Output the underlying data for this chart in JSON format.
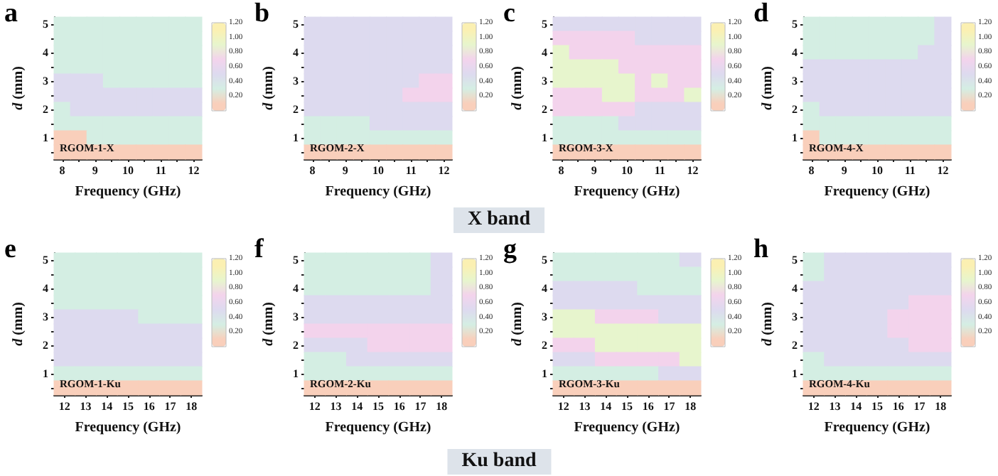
{
  "chart_data": [
    {
      "type": "heatmap",
      "title": "a",
      "xlabel": "Frequency (GHz)",
      "ylabel": "d (mm)",
      "annotations": [
        "RGOM-1-X",
        "X band"
      ],
      "categories": [
        "8",
        null,
        "9",
        null,
        "10",
        null,
        "11",
        null,
        "12"
      ],
      "y_categories": [
        "5",
        null,
        "4",
        null,
        "3",
        null,
        "2",
        null,
        "1",
        null
      ],
      "clim": [
        0,
        1.2
      ],
      "cticks": [
        {
          "value": 0.2,
          "label": "0.20"
        },
        {
          "value": 0.4,
          "label": "0.40"
        },
        {
          "value": 0.6,
          "label": "0.60"
        },
        {
          "value": 0.8,
          "label": "0.80"
        },
        {
          "value": 1.0,
          "label": "1.00"
        },
        {
          "value": 1.2,
          "label": "1.20"
        }
      ],
      "colors": [
        "#f9cfbb",
        "#d4eee3",
        "#dddaef",
        "#f3d3ec",
        "#e7f5cd",
        "#fbf0b2"
      ],
      "cells": [
        [
          0.3,
          0.3,
          0.3,
          0.3,
          0.3,
          0.3,
          0.3,
          0.3,
          0.3
        ],
        [
          0.3,
          0.3,
          0.3,
          0.3,
          0.3,
          0.3,
          0.3,
          0.3,
          0.3
        ],
        [
          0.3,
          0.3,
          0.3,
          0.3,
          0.3,
          0.3,
          0.3,
          0.3,
          0.3
        ],
        [
          0.3,
          0.3,
          0.3,
          0.3,
          0.3,
          0.3,
          0.3,
          0.3,
          0.3
        ],
        [
          0.5,
          0.5,
          0.5,
          0.3,
          0.3,
          0.3,
          0.3,
          0.3,
          0.3
        ],
        [
          0.5,
          0.5,
          0.5,
          0.5,
          0.5,
          0.5,
          0.5,
          0.5,
          0.5
        ],
        [
          0.3,
          0.5,
          0.5,
          0.5,
          0.5,
          0.5,
          0.5,
          0.5,
          0.5
        ],
        [
          0.3,
          0.3,
          0.3,
          0.3,
          0.3,
          0.3,
          0.3,
          0.3,
          0.3
        ],
        [
          0.1,
          0.1,
          0.3,
          0.3,
          0.3,
          0.3,
          0.3,
          0.3,
          0.3
        ],
        [
          0.1,
          0.1,
          0.1,
          0.1,
          0.1,
          0.1,
          0.1,
          0.1,
          0.1
        ]
      ]
    },
    {
      "type": "heatmap",
      "title": "b",
      "xlabel": "Frequency (GHz)",
      "ylabel": "d (mm)",
      "annotations": [
        "RGOM-2-X"
      ],
      "categories": [
        "8",
        null,
        "9",
        null,
        "10",
        null,
        "11",
        null,
        "12"
      ],
      "y_categories": [
        "5",
        null,
        "4",
        null,
        "3",
        null,
        "2",
        null,
        "1",
        null
      ],
      "clim": [
        0,
        1.2
      ],
      "cticks": [
        {
          "value": 0.2,
          "label": "0.20"
        },
        {
          "value": 0.4,
          "label": "0.40"
        },
        {
          "value": 0.6,
          "label": "0.60"
        },
        {
          "value": 0.8,
          "label": "0.80"
        },
        {
          "value": 1.0,
          "label": "1.00"
        },
        {
          "value": 1.2,
          "label": "1.20"
        }
      ],
      "colors": [
        "#f9cfbb",
        "#d4eee3",
        "#dddaef",
        "#f3d3ec",
        "#e7f5cd",
        "#fbf0b2"
      ],
      "cells": [
        [
          0.5,
          0.5,
          0.5,
          0.5,
          0.5,
          0.5,
          0.5,
          0.5,
          0.5
        ],
        [
          0.5,
          0.5,
          0.5,
          0.5,
          0.5,
          0.5,
          0.5,
          0.5,
          0.5
        ],
        [
          0.5,
          0.5,
          0.5,
          0.5,
          0.5,
          0.5,
          0.5,
          0.5,
          0.5
        ],
        [
          0.5,
          0.5,
          0.5,
          0.5,
          0.5,
          0.5,
          0.5,
          0.5,
          0.5
        ],
        [
          0.5,
          0.5,
          0.5,
          0.5,
          0.5,
          0.5,
          0.5,
          0.7,
          0.7
        ],
        [
          0.5,
          0.5,
          0.5,
          0.5,
          0.5,
          0.5,
          0.7,
          0.7,
          0.7
        ],
        [
          0.5,
          0.5,
          0.5,
          0.5,
          0.5,
          0.5,
          0.5,
          0.5,
          0.5
        ],
        [
          0.3,
          0.3,
          0.3,
          0.3,
          0.5,
          0.5,
          0.5,
          0.5,
          0.5
        ],
        [
          0.3,
          0.3,
          0.3,
          0.3,
          0.3,
          0.3,
          0.3,
          0.3,
          0.3
        ],
        [
          0.1,
          0.1,
          0.1,
          0.1,
          0.1,
          0.1,
          0.1,
          0.1,
          0.1
        ]
      ]
    },
    {
      "type": "heatmap",
      "title": "c",
      "xlabel": "Frequency (GHz)",
      "ylabel": "d (mm)",
      "annotations": [
        "RGOM-3-X"
      ],
      "categories": [
        "8",
        null,
        "9",
        null,
        "10",
        null,
        "11",
        null,
        "12"
      ],
      "y_categories": [
        "5",
        null,
        "4",
        null,
        "3",
        null,
        "2",
        null,
        "1",
        null
      ],
      "clim": [
        0,
        1.2
      ],
      "cticks": [
        {
          "value": 0.2,
          "label": "0.20"
        },
        {
          "value": 0.4,
          "label": "0.40"
        },
        {
          "value": 0.6,
          "label": "0.60"
        },
        {
          "value": 0.8,
          "label": "0.80"
        },
        {
          "value": 1.0,
          "label": "1.00"
        },
        {
          "value": 1.2,
          "label": "1.20"
        }
      ],
      "colors": [
        "#f9cfbb",
        "#d4eee3",
        "#dddaef",
        "#f3d3ec",
        "#e7f5cd",
        "#fbf0b2"
      ],
      "cells": [
        [
          0.5,
          0.5,
          0.5,
          0.5,
          0.5,
          0.5,
          0.5,
          0.5,
          0.5
        ],
        [
          0.7,
          0.7,
          0.7,
          0.7,
          0.7,
          0.5,
          0.5,
          0.5,
          0.5
        ],
        [
          0.9,
          0.7,
          0.7,
          0.7,
          0.7,
          0.7,
          0.7,
          0.7,
          0.7
        ],
        [
          0.9,
          0.9,
          0.9,
          0.9,
          0.7,
          0.7,
          0.7,
          0.7,
          0.7
        ],
        [
          0.9,
          0.9,
          0.9,
          0.9,
          0.9,
          0.7,
          0.9,
          0.7,
          0.7
        ],
        [
          0.7,
          0.7,
          0.7,
          0.9,
          0.9,
          0.7,
          0.7,
          0.7,
          0.9
        ],
        [
          0.7,
          0.7,
          0.7,
          0.7,
          0.7,
          0.5,
          0.5,
          0.5,
          0.5
        ],
        [
          0.3,
          0.3,
          0.3,
          0.3,
          0.5,
          0.5,
          0.5,
          0.5,
          0.5
        ],
        [
          0.3,
          0.3,
          0.3,
          0.3,
          0.3,
          0.3,
          0.3,
          0.3,
          0.3
        ],
        [
          0.1,
          0.1,
          0.1,
          0.1,
          0.1,
          0.1,
          0.1,
          0.1,
          0.1
        ]
      ]
    },
    {
      "type": "heatmap",
      "title": "d",
      "xlabel": "Frequency (GHz)",
      "ylabel": "d (mm)",
      "annotations": [
        "RGOM-4-X"
      ],
      "categories": [
        "8",
        null,
        "9",
        null,
        "10",
        null,
        "11",
        null,
        "12"
      ],
      "y_categories": [
        "5",
        null,
        "4",
        null,
        "3",
        null,
        "2",
        null,
        "1",
        null
      ],
      "clim": [
        0,
        1.2
      ],
      "cticks": [
        {
          "value": 0.2,
          "label": "0.20"
        },
        {
          "value": 0.4,
          "label": "0.40"
        },
        {
          "value": 0.6,
          "label": "0.60"
        },
        {
          "value": 0.8,
          "label": "0.80"
        },
        {
          "value": 1.0,
          "label": "1.00"
        },
        {
          "value": 1.2,
          "label": "1.20"
        }
      ],
      "colors": [
        "#f9cfbb",
        "#d4eee3",
        "#dddaef",
        "#f3d3ec",
        "#e7f5cd",
        "#fbf0b2"
      ],
      "cells": [
        [
          0.3,
          0.3,
          0.3,
          0.3,
          0.3,
          0.3,
          0.3,
          0.3,
          0.5
        ],
        [
          0.3,
          0.3,
          0.3,
          0.3,
          0.3,
          0.3,
          0.3,
          0.3,
          0.5
        ],
        [
          0.3,
          0.3,
          0.3,
          0.3,
          0.3,
          0.3,
          0.3,
          0.5,
          0.5
        ],
        [
          0.5,
          0.5,
          0.5,
          0.5,
          0.5,
          0.5,
          0.5,
          0.5,
          0.5
        ],
        [
          0.5,
          0.5,
          0.5,
          0.5,
          0.5,
          0.5,
          0.5,
          0.5,
          0.5
        ],
        [
          0.5,
          0.5,
          0.5,
          0.5,
          0.5,
          0.5,
          0.5,
          0.5,
          0.5
        ],
        [
          0.3,
          0.5,
          0.5,
          0.5,
          0.5,
          0.5,
          0.5,
          0.5,
          0.5
        ],
        [
          0.3,
          0.3,
          0.3,
          0.3,
          0.3,
          0.3,
          0.3,
          0.3,
          0.3
        ],
        [
          0.1,
          0.3,
          0.3,
          0.3,
          0.3,
          0.3,
          0.3,
          0.3,
          0.3
        ],
        [
          0.1,
          0.1,
          0.1,
          0.1,
          0.1,
          0.1,
          0.1,
          0.1,
          0.1
        ]
      ]
    },
    {
      "type": "heatmap",
      "title": "e",
      "xlabel": "Frequency (GHz)",
      "ylabel": "d (mm)",
      "annotations": [
        "RGOM-1-Ku",
        "Ku band"
      ],
      "categories": [
        "12",
        "13",
        "14",
        "15",
        "16",
        "17",
        "18"
      ],
      "y_categories": [
        "5",
        null,
        "4",
        null,
        "3",
        null,
        "2",
        null,
        "1",
        null
      ],
      "clim": [
        0,
        1.2
      ],
      "cticks": [
        {
          "value": 0.2,
          "label": "0.20"
        },
        {
          "value": 0.4,
          "label": "0.40"
        },
        {
          "value": 0.6,
          "label": "0.60"
        },
        {
          "value": 0.8,
          "label": "0.80"
        },
        {
          "value": 1.0,
          "label": "1.00"
        },
        {
          "value": 1.2,
          "label": "1.20"
        }
      ],
      "colors": [
        "#f9cfbb",
        "#d4eee3",
        "#dddaef",
        "#f3d3ec",
        "#e7f5cd",
        "#fbf0b2"
      ],
      "cells": [
        [
          0.3,
          0.3,
          0.3,
          0.3,
          0.3,
          0.3,
          0.3
        ],
        [
          0.3,
          0.3,
          0.3,
          0.3,
          0.3,
          0.3,
          0.3
        ],
        [
          0.3,
          0.3,
          0.3,
          0.3,
          0.3,
          0.3,
          0.3
        ],
        [
          0.3,
          0.3,
          0.3,
          0.3,
          0.3,
          0.3,
          0.3
        ],
        [
          0.5,
          0.5,
          0.5,
          0.5,
          0.3,
          0.3,
          0.3
        ],
        [
          0.5,
          0.5,
          0.5,
          0.5,
          0.5,
          0.5,
          0.5
        ],
        [
          0.5,
          0.5,
          0.5,
          0.5,
          0.5,
          0.5,
          0.5
        ],
        [
          0.5,
          0.5,
          0.5,
          0.5,
          0.5,
          0.5,
          0.5
        ],
        [
          0.3,
          0.3,
          0.3,
          0.3,
          0.3,
          0.3,
          0.3
        ],
        [
          0.1,
          0.1,
          0.1,
          0.1,
          0.1,
          0.1,
          0.1
        ]
      ]
    },
    {
      "type": "heatmap",
      "title": "f",
      "xlabel": "Frequency (GHz)",
      "ylabel": "d (mm)",
      "annotations": [
        "RGOM-2-Ku"
      ],
      "categories": [
        "12",
        "13",
        "14",
        "15",
        "16",
        "17",
        "18"
      ],
      "y_categories": [
        "5",
        null,
        "4",
        null,
        "3",
        null,
        "2",
        null,
        "1",
        null
      ],
      "clim": [
        0,
        1.2
      ],
      "cticks": [
        {
          "value": 0.2,
          "label": "0.20"
        },
        {
          "value": 0.4,
          "label": "0.40"
        },
        {
          "value": 0.6,
          "label": "0.60"
        },
        {
          "value": 0.8,
          "label": "0.80"
        },
        {
          "value": 1.0,
          "label": "1.00"
        },
        {
          "value": 1.2,
          "label": "1.20"
        }
      ],
      "colors": [
        "#f9cfbb",
        "#d4eee3",
        "#dddaef",
        "#f3d3ec",
        "#e7f5cd",
        "#fbf0b2"
      ],
      "cells": [
        [
          0.3,
          0.3,
          0.3,
          0.3,
          0.3,
          0.3,
          0.5
        ],
        [
          0.3,
          0.3,
          0.3,
          0.3,
          0.3,
          0.3,
          0.5
        ],
        [
          0.3,
          0.3,
          0.3,
          0.3,
          0.3,
          0.3,
          0.5
        ],
        [
          0.5,
          0.5,
          0.5,
          0.5,
          0.5,
          0.5,
          0.5
        ],
        [
          0.5,
          0.5,
          0.5,
          0.5,
          0.5,
          0.5,
          0.5
        ],
        [
          0.7,
          0.7,
          0.7,
          0.7,
          0.7,
          0.7,
          0.7
        ],
        [
          0.5,
          0.5,
          0.5,
          0.7,
          0.7,
          0.7,
          0.7
        ],
        [
          0.3,
          0.3,
          0.5,
          0.5,
          0.5,
          0.5,
          0.5
        ],
        [
          0.3,
          0.3,
          0.3,
          0.3,
          0.3,
          0.3,
          0.3
        ],
        [
          0.1,
          0.1,
          0.1,
          0.1,
          0.1,
          0.1,
          0.1
        ]
      ]
    },
    {
      "type": "heatmap",
      "title": "g",
      "xlabel": "Frequency (GHz)",
      "ylabel": "d (mm)",
      "annotations": [
        "RGOM-3-Ku"
      ],
      "categories": [
        "12",
        "13",
        "14",
        "15",
        "16",
        "17",
        "18"
      ],
      "y_categories": [
        "5",
        null,
        "4",
        null,
        "3",
        null,
        "2",
        null,
        "1",
        null
      ],
      "clim": [
        0,
        1.2
      ],
      "cticks": [
        {
          "value": 0.2,
          "label": "0.20"
        },
        {
          "value": 0.4,
          "label": "0.40"
        },
        {
          "value": 0.6,
          "label": "0.60"
        },
        {
          "value": 0.8,
          "label": "0.80"
        },
        {
          "value": 1.0,
          "label": "1.00"
        },
        {
          "value": 1.2,
          "label": "1.20"
        }
      ],
      "colors": [
        "#f9cfbb",
        "#d4eee3",
        "#dddaef",
        "#f3d3ec",
        "#e7f5cd",
        "#fbf0b2"
      ],
      "cells": [
        [
          0.3,
          0.3,
          0.3,
          0.3,
          0.3,
          0.3,
          0.5
        ],
        [
          0.3,
          0.3,
          0.3,
          0.3,
          0.3,
          0.3,
          0.3
        ],
        [
          0.5,
          0.5,
          0.5,
          0.5,
          0.3,
          0.3,
          0.3
        ],
        [
          0.5,
          0.5,
          0.5,
          0.5,
          0.5,
          0.5,
          0.5
        ],
        [
          0.9,
          0.9,
          0.7,
          0.7,
          0.7,
          0.5,
          0.5
        ],
        [
          0.9,
          0.9,
          0.9,
          0.9,
          0.9,
          0.9,
          0.9
        ],
        [
          0.7,
          0.7,
          0.9,
          0.9,
          0.9,
          0.9,
          0.9
        ],
        [
          0.5,
          0.5,
          0.7,
          0.7,
          0.7,
          0.7,
          0.9
        ],
        [
          0.3,
          0.3,
          0.3,
          0.3,
          0.3,
          0.5,
          0.5
        ],
        [
          0.1,
          0.1,
          0.1,
          0.1,
          0.1,
          0.1,
          0.1
        ]
      ]
    },
    {
      "type": "heatmap",
      "title": "h",
      "xlabel": "Frequency (GHz)",
      "ylabel": "d (mm)",
      "annotations": [
        "RGOM-4-Ku"
      ],
      "categories": [
        "12",
        "13",
        "14",
        "15",
        "16",
        "17",
        "18"
      ],
      "y_categories": [
        "5",
        null,
        "4",
        null,
        "3",
        null,
        "2",
        null,
        "1",
        null
      ],
      "clim": [
        0,
        1.2
      ],
      "cticks": [
        {
          "value": 0.2,
          "label": "0.20"
        },
        {
          "value": 0.4,
          "label": "0.40"
        },
        {
          "value": 0.6,
          "label": "0.60"
        },
        {
          "value": 0.8,
          "label": "0.80"
        },
        {
          "value": 1.0,
          "label": "1.00"
        },
        {
          "value": 1.2,
          "label": "1.20"
        }
      ],
      "colors": [
        "#f9cfbb",
        "#d4eee3",
        "#dddaef",
        "#f3d3ec",
        "#e7f5cd",
        "#fbf0b2"
      ],
      "cells": [
        [
          0.3,
          0.5,
          0.5,
          0.5,
          0.5,
          0.5,
          0.5
        ],
        [
          0.3,
          0.5,
          0.5,
          0.5,
          0.5,
          0.5,
          0.5
        ],
        [
          0.5,
          0.5,
          0.5,
          0.5,
          0.5,
          0.5,
          0.5
        ],
        [
          0.5,
          0.5,
          0.5,
          0.5,
          0.5,
          0.7,
          0.7
        ],
        [
          0.5,
          0.5,
          0.5,
          0.5,
          0.7,
          0.7,
          0.7
        ],
        [
          0.5,
          0.5,
          0.5,
          0.5,
          0.7,
          0.7,
          0.7
        ],
        [
          0.5,
          0.5,
          0.5,
          0.5,
          0.5,
          0.7,
          0.7
        ],
        [
          0.3,
          0.5,
          0.5,
          0.5,
          0.5,
          0.5,
          0.5
        ],
        [
          0.3,
          0.3,
          0.3,
          0.3,
          0.3,
          0.3,
          0.3
        ],
        [
          0.1,
          0.1,
          0.1,
          0.1,
          0.1,
          0.1,
          0.1
        ]
      ]
    }
  ]
}
